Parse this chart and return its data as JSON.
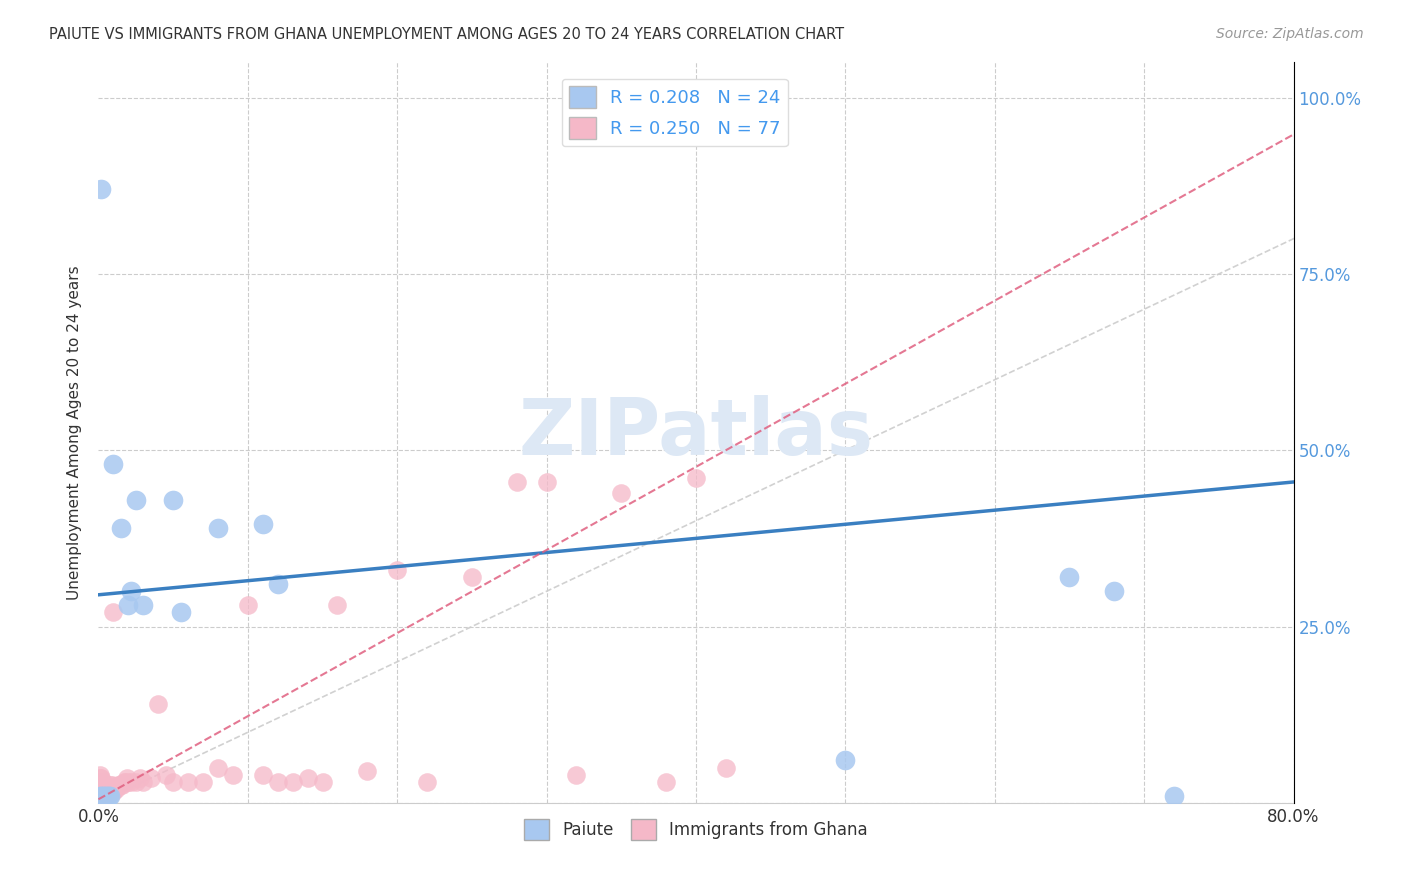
{
  "title": "PAIUTE VS IMMIGRANTS FROM GHANA UNEMPLOYMENT AMONG AGES 20 TO 24 YEARS CORRELATION CHART",
  "source": "Source: ZipAtlas.com",
  "ylabel": "Unemployment Among Ages 20 to 24 years",
  "xlim": [
    0.0,
    0.8
  ],
  "ylim": [
    0.0,
    1.05
  ],
  "xticks": [
    0.0,
    0.1,
    0.2,
    0.3,
    0.4,
    0.5,
    0.6,
    0.7,
    0.8
  ],
  "xticklabels": [
    "0.0%",
    "",
    "",
    "",
    "",
    "",
    "",
    "",
    "80.0%"
  ],
  "yticks": [
    0.0,
    0.25,
    0.5,
    0.75,
    1.0
  ],
  "right_yticklabels": [
    "",
    "25.0%",
    "50.0%",
    "75.0%",
    "100.0%"
  ],
  "paiute_R": 0.208,
  "paiute_N": 24,
  "ghana_R": 0.25,
  "ghana_N": 77,
  "paiute_color": "#a8c8f0",
  "paiute_line_color": "#3a7fc1",
  "ghana_color": "#f5b8c8",
  "ghana_line_color": "#e06080",
  "ref_line_color": "#cccccc",
  "legend_text_color": "#4499ee",
  "watermark": "ZIPatlas",
  "paiute_x": [
    0.002,
    0.002,
    0.003,
    0.004,
    0.005,
    0.006,
    0.007,
    0.008,
    0.01,
    0.015,
    0.02,
    0.022,
    0.025,
    0.03,
    0.05,
    0.055,
    0.08,
    0.11,
    0.12,
    0.5,
    0.65,
    0.68,
    0.72,
    0.001
  ],
  "paiute_y": [
    0.01,
    0.87,
    0.01,
    0.01,
    0.01,
    0.01,
    0.01,
    0.01,
    0.48,
    0.39,
    0.28,
    0.3,
    0.43,
    0.28,
    0.43,
    0.27,
    0.39,
    0.395,
    0.31,
    0.06,
    0.32,
    0.3,
    0.01,
    0.01
  ],
  "ghana_x": [
    0.001,
    0.001,
    0.001,
    0.001,
    0.001,
    0.001,
    0.001,
    0.001,
    0.002,
    0.002,
    0.002,
    0.002,
    0.002,
    0.002,
    0.003,
    0.003,
    0.003,
    0.003,
    0.003,
    0.004,
    0.004,
    0.004,
    0.004,
    0.005,
    0.005,
    0.005,
    0.006,
    0.006,
    0.007,
    0.007,
    0.008,
    0.008,
    0.009,
    0.009,
    0.01,
    0.01,
    0.01,
    0.011,
    0.012,
    0.013,
    0.014,
    0.015,
    0.016,
    0.017,
    0.018,
    0.019,
    0.02,
    0.022,
    0.025,
    0.028,
    0.03,
    0.035,
    0.04,
    0.045,
    0.05,
    0.06,
    0.07,
    0.08,
    0.09,
    0.1,
    0.11,
    0.12,
    0.13,
    0.14,
    0.15,
    0.16,
    0.18,
    0.2,
    0.22,
    0.25,
    0.28,
    0.3,
    0.32,
    0.35,
    0.38,
    0.4,
    0.42
  ],
  "ghana_y": [
    0.005,
    0.01,
    0.015,
    0.02,
    0.025,
    0.03,
    0.035,
    0.04,
    0.01,
    0.015,
    0.02,
    0.025,
    0.03,
    0.035,
    0.01,
    0.015,
    0.02,
    0.025,
    0.03,
    0.01,
    0.015,
    0.02,
    0.025,
    0.01,
    0.015,
    0.02,
    0.015,
    0.02,
    0.015,
    0.02,
    0.015,
    0.025,
    0.02,
    0.025,
    0.015,
    0.02,
    0.27,
    0.02,
    0.02,
    0.025,
    0.025,
    0.025,
    0.025,
    0.03,
    0.03,
    0.035,
    0.03,
    0.03,
    0.03,
    0.035,
    0.03,
    0.035,
    0.14,
    0.04,
    0.03,
    0.03,
    0.03,
    0.05,
    0.04,
    0.28,
    0.04,
    0.03,
    0.03,
    0.035,
    0.03,
    0.28,
    0.045,
    0.33,
    0.03,
    0.32,
    0.455,
    0.455,
    0.04,
    0.44,
    0.03,
    0.46,
    0.05
  ],
  "paiute_line_x0": 0.0,
  "paiute_line_y0": 0.295,
  "paiute_line_x1": 0.8,
  "paiute_line_y1": 0.455,
  "ghana_line_x0": 0.0,
  "ghana_line_y0": 0.005,
  "ghana_line_x1": 0.42,
  "ghana_line_y1": 0.5
}
